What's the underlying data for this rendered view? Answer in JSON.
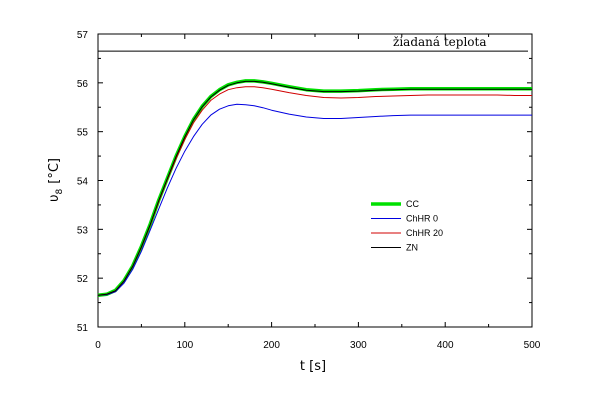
{
  "chart_data": {
    "type": "line",
    "title": "",
    "xlabel": "t  [s]",
    "ylabel": "υ",
    "ylabel_subscript": "8",
    "ylabel_unit": "[°C]",
    "xlim": [
      0,
      500
    ],
    "ylim": [
      51,
      57
    ],
    "xticks": [
      "0",
      "100",
      "200",
      "300",
      "400",
      "500"
    ],
    "yticks": [
      "51",
      "52",
      "53",
      "54",
      "55",
      "56",
      "57"
    ],
    "grid": false,
    "legend_position": "right-middle",
    "annotation": "žiadaná teplota",
    "setpoint": 56.65,
    "series": [
      {
        "name": "CC",
        "color": "#00e000",
        "x": [
          0,
          10,
          20,
          30,
          40,
          50,
          60,
          70,
          80,
          90,
          100,
          110,
          120,
          130,
          140,
          150,
          160,
          170,
          180,
          190,
          200,
          220,
          240,
          260,
          280,
          300,
          320,
          340,
          360,
          380,
          400,
          420,
          440,
          460,
          480,
          500
        ],
        "values": [
          51.65,
          51.67,
          51.75,
          51.95,
          52.25,
          52.65,
          53.1,
          53.6,
          54.05,
          54.5,
          54.9,
          55.25,
          55.52,
          55.72,
          55.86,
          55.96,
          56.01,
          56.04,
          56.04,
          56.02,
          55.99,
          55.92,
          55.86,
          55.83,
          55.83,
          55.84,
          55.86,
          55.87,
          55.88,
          55.88,
          55.88,
          55.88,
          55.88,
          55.88,
          55.88,
          55.88
        ]
      },
      {
        "name": "ChHR 0",
        "color": "#0000e0",
        "x": [
          0,
          10,
          20,
          30,
          40,
          50,
          60,
          70,
          80,
          90,
          100,
          110,
          120,
          130,
          140,
          150,
          160,
          170,
          180,
          190,
          200,
          220,
          240,
          260,
          280,
          300,
          320,
          340,
          360,
          380,
          400,
          420,
          440,
          460,
          480,
          500
        ],
        "values": [
          51.65,
          51.66,
          51.72,
          51.9,
          52.18,
          52.55,
          52.98,
          53.42,
          53.85,
          54.25,
          54.6,
          54.9,
          55.15,
          55.34,
          55.46,
          55.53,
          55.56,
          55.55,
          55.53,
          55.49,
          55.44,
          55.36,
          55.3,
          55.27,
          55.27,
          55.29,
          55.31,
          55.33,
          55.34,
          55.34,
          55.34,
          55.34,
          55.34,
          55.34,
          55.34,
          55.34
        ]
      },
      {
        "name": "ChHR 20",
        "color": "#d00000",
        "x": [
          0,
          10,
          20,
          30,
          40,
          50,
          60,
          70,
          80,
          90,
          100,
          110,
          120,
          130,
          140,
          150,
          160,
          170,
          180,
          190,
          200,
          220,
          240,
          260,
          280,
          300,
          320,
          340,
          360,
          380,
          400,
          420,
          440,
          460,
          480,
          500
        ],
        "values": [
          51.65,
          51.67,
          51.74,
          51.94,
          52.24,
          52.63,
          53.08,
          53.57,
          54.02,
          54.45,
          54.84,
          55.18,
          55.44,
          55.64,
          55.77,
          55.86,
          55.9,
          55.92,
          55.92,
          55.9,
          55.87,
          55.8,
          55.74,
          55.7,
          55.69,
          55.7,
          55.72,
          55.73,
          55.74,
          55.75,
          55.75,
          55.75,
          55.75,
          55.75,
          55.74,
          55.74
        ]
      },
      {
        "name": "ZN",
        "color": "#000000",
        "x": [
          0,
          10,
          20,
          30,
          40,
          50,
          60,
          70,
          80,
          90,
          100,
          110,
          120,
          130,
          140,
          150,
          160,
          170,
          180,
          190,
          200,
          220,
          240,
          260,
          280,
          300,
          320,
          340,
          360,
          380,
          400,
          420,
          440,
          460,
          480,
          500
        ],
        "values": [
          51.65,
          51.67,
          51.74,
          51.94,
          52.24,
          52.64,
          53.09,
          53.59,
          54.04,
          54.49,
          54.89,
          55.24,
          55.51,
          55.71,
          55.85,
          55.95,
          56.0,
          56.03,
          56.03,
          56.01,
          55.98,
          55.91,
          55.85,
          55.82,
          55.82,
          55.83,
          55.85,
          55.86,
          55.87,
          55.87,
          55.87,
          55.87,
          55.87,
          55.87,
          55.87,
          55.87
        ]
      }
    ]
  }
}
